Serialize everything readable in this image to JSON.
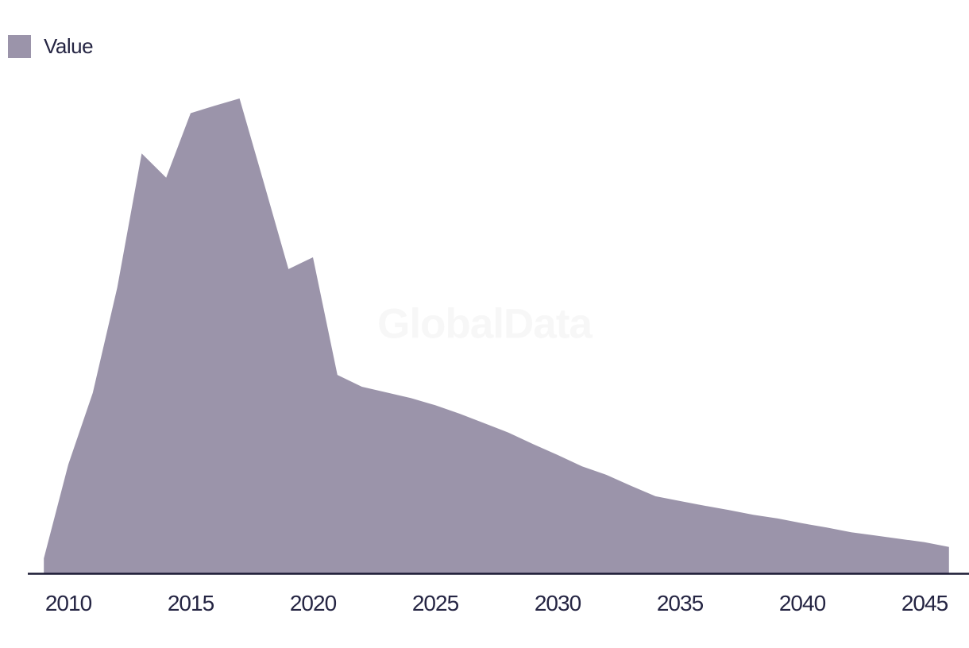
{
  "legend": {
    "label": "Value"
  },
  "watermark": {
    "text": "GlobalData"
  },
  "colors": {
    "background": "#ffffff",
    "series_fill": "#9b94aa",
    "axis_line": "#1b1b35",
    "text": "#252543",
    "watermark": "#f7f7f7"
  },
  "chart_data": {
    "type": "area",
    "title": "",
    "xlabel": "",
    "ylabel": "",
    "grid": false,
    "legend_position": "top-left",
    "x_tick_labels": [
      "2010",
      "2015",
      "2020",
      "2025",
      "2030",
      "2035",
      "2040",
      "2045"
    ],
    "x_range": [
      2009,
      2046
    ],
    "ylim": [
      0,
      105
    ],
    "y_units": "relative units (no y-axis displayed; values normalized so 2017 peak = 100)",
    "series": [
      {
        "name": "Value",
        "color": "#9b94aa",
        "x": [
          2009,
          2010,
          2011,
          2012,
          2013,
          2014,
          2015,
          2016,
          2017,
          2018,
          2019,
          2020,
          2021,
          2022,
          2023,
          2024,
          2025,
          2026,
          2027,
          2028,
          2029,
          2030,
          2031,
          2032,
          2033,
          2034,
          2035,
          2036,
          2037,
          2038,
          2039,
          2040,
          2041,
          2042,
          2043,
          2044,
          2045,
          2046
        ],
        "values": [
          3.0,
          22.8,
          37.9,
          60.1,
          88.4,
          83.3,
          96.9,
          98.5,
          100,
          82.1,
          64.0,
          66.5,
          41.7,
          39.2,
          38.0,
          36.8,
          35.3,
          33.5,
          31.5,
          29.5,
          27.1,
          24.8,
          22.4,
          20.6,
          18.3,
          16.1,
          15.1,
          14.1,
          13.2,
          12.2,
          11.4,
          10.4,
          9.5,
          8.5,
          7.8,
          7.1,
          6.4,
          5.4
        ]
      }
    ]
  }
}
